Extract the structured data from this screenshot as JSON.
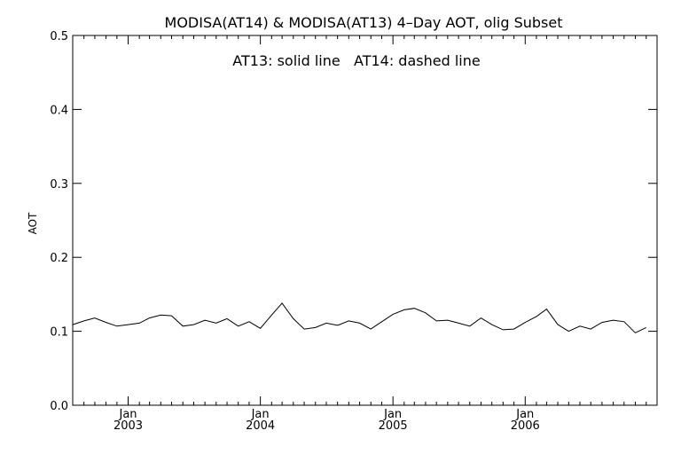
{
  "chart_data": {
    "type": "line",
    "title": "MODISA(AT14) & MODISA(AT13) 4–Day AOT, olig Subset",
    "annotation": "AT13: solid line   AT14: dashed line",
    "ylabel": "AOT",
    "xlabel": "",
    "ylim": [
      0.0,
      0.5
    ],
    "yticks": [
      "0.0",
      "0.1",
      "0.2",
      "0.3",
      "0.4",
      "0.5"
    ],
    "xlim": [
      "2002-08-01",
      "2006-12-31"
    ],
    "xticks": [
      {
        "month": "Jan",
        "year": "2003",
        "date": "2003-01-01"
      },
      {
        "month": "Jan",
        "year": "2004",
        "date": "2004-01-01"
      },
      {
        "month": "Jan",
        "year": "2005",
        "date": "2005-01-01"
      },
      {
        "month": "Jan",
        "year": "2006",
        "date": "2006-01-01"
      }
    ],
    "grid": false,
    "series": [
      {
        "name": "AT13",
        "style": "solid",
        "color": "#000000",
        "points": [
          [
            "2002-08-01",
            0.109
          ],
          [
            "2002-09-01",
            0.114
          ],
          [
            "2002-10-01",
            0.118
          ],
          [
            "2002-11-01",
            0.112
          ],
          [
            "2002-12-01",
            0.107
          ],
          [
            "2003-01-01",
            0.109
          ],
          [
            "2003-02-01",
            0.111
          ],
          [
            "2003-03-01",
            0.118
          ],
          [
            "2003-04-01",
            0.122
          ],
          [
            "2003-05-01",
            0.121
          ],
          [
            "2003-06-01",
            0.107
          ],
          [
            "2003-07-01",
            0.109
          ],
          [
            "2003-08-01",
            0.115
          ],
          [
            "2003-09-01",
            0.111
          ],
          [
            "2003-10-01",
            0.117
          ],
          [
            "2003-11-01",
            0.107
          ],
          [
            "2003-12-01",
            0.113
          ],
          [
            "2004-01-01",
            0.104
          ],
          [
            "2004-02-01",
            0.122
          ],
          [
            "2004-03-01",
            0.138
          ],
          [
            "2004-04-01",
            0.117
          ],
          [
            "2004-05-01",
            0.103
          ],
          [
            "2004-06-01",
            0.105
          ],
          [
            "2004-07-01",
            0.111
          ],
          [
            "2004-08-01",
            0.108
          ],
          [
            "2004-09-01",
            0.114
          ],
          [
            "2004-10-01",
            0.111
          ],
          [
            "2004-11-01",
            0.103
          ],
          [
            "2004-12-01",
            0.113
          ],
          [
            "2005-01-01",
            0.123
          ],
          [
            "2005-02-01",
            0.129
          ],
          [
            "2005-03-01",
            0.131
          ],
          [
            "2005-04-01",
            0.125
          ],
          [
            "2005-05-01",
            0.114
          ],
          [
            "2005-06-01",
            0.115
          ],
          [
            "2005-07-01",
            0.111
          ],
          [
            "2005-08-01",
            0.107
          ],
          [
            "2005-09-01",
            0.118
          ],
          [
            "2005-10-01",
            0.109
          ],
          [
            "2005-11-01",
            0.102
          ],
          [
            "2005-12-01",
            0.103
          ],
          [
            "2006-01-01",
            0.112
          ],
          [
            "2006-02-01",
            0.12
          ],
          [
            "2006-03-01",
            0.13
          ],
          [
            "2006-04-01",
            0.109
          ],
          [
            "2006-05-01",
            0.1
          ],
          [
            "2006-06-01",
            0.107
          ],
          [
            "2006-07-01",
            0.103
          ],
          [
            "2006-08-01",
            0.112
          ],
          [
            "2006-09-01",
            0.115
          ],
          [
            "2006-10-01",
            0.113
          ],
          [
            "2006-11-01",
            0.098
          ],
          [
            "2006-12-01",
            0.105
          ]
        ]
      }
    ]
  }
}
